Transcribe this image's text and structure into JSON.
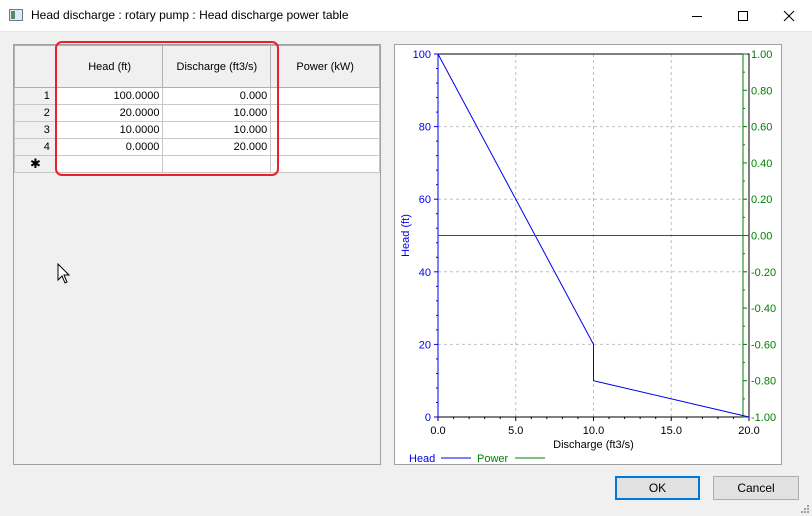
{
  "window": {
    "title": "Head discharge : rotary pump : Head discharge power table",
    "icons": {
      "app": "table-window-icon",
      "minimize": "minimize-icon",
      "maximize": "maximize-icon",
      "close": "close-icon"
    }
  },
  "grid": {
    "columns": [
      "Head (ft)",
      "Discharge (ft3/s)",
      "Power (kW)"
    ],
    "rows": [
      {
        "index": "1",
        "head": "100.0000",
        "discharge": "0.000",
        "power": ""
      },
      {
        "index": "2",
        "head": "20.0000",
        "discharge": "10.000",
        "power": ""
      },
      {
        "index": "3",
        "head": "10.0000",
        "discharge": "10.000",
        "power": ""
      },
      {
        "index": "4",
        "head": "0.0000",
        "discharge": "20.000",
        "power": ""
      }
    ],
    "new_row_marker": "✱",
    "highlight_color": "#e8202a"
  },
  "chart_data": {
    "type": "line",
    "title": "",
    "xlabel": "Discharge (ft3/s)",
    "ylabel": "Head (ft)",
    "y2label": "Power (kW)",
    "xlim": [
      0,
      20
    ],
    "ylim": [
      0,
      100
    ],
    "y2lim": [
      -1,
      1
    ],
    "x_ticks": [
      "0.0",
      "5.0",
      "10.0",
      "15.0",
      "20.0"
    ],
    "y_ticks": [
      "0",
      "20",
      "40",
      "60",
      "80",
      "100"
    ],
    "y2_ticks": [
      "-1.00",
      "-0.80",
      "-0.60",
      "-0.40",
      "-0.20",
      "0.00",
      "0.20",
      "0.40",
      "0.60",
      "0.80",
      "1.00"
    ],
    "grid": true,
    "legend_position": "bottom-left",
    "series": [
      {
        "name": "Head",
        "axis": "left",
        "color": "#0000ee",
        "x": [
          0,
          10,
          10,
          20
        ],
        "y": [
          100,
          20,
          10,
          0
        ]
      },
      {
        "name": "Power",
        "axis": "right",
        "color": "#008000",
        "x": [
          0,
          20
        ],
        "y": [
          0,
          0
        ]
      }
    ]
  },
  "buttons": {
    "ok": "OK",
    "cancel": "Cancel"
  }
}
